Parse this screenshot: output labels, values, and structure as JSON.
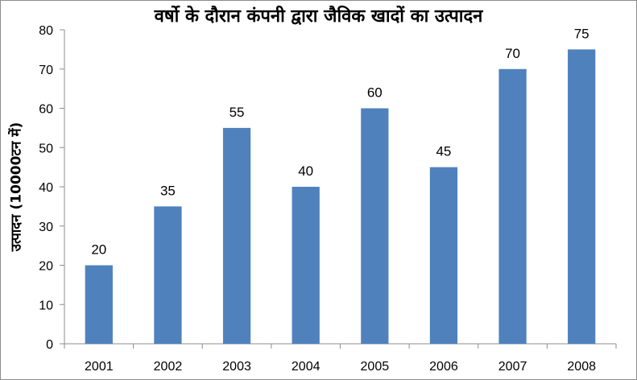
{
  "chart_data": {
    "type": "bar",
    "title": "वर्षो के दौरान कंपनी द्वारा जैविक खादों का उत्पादन",
    "xlabel": "",
    "ylabel": "उत्पादन (10000टन में)",
    "categories": [
      "2001",
      "2002",
      "2003",
      "2004",
      "2005",
      "2006",
      "2007",
      "2008"
    ],
    "values": [
      20,
      35,
      55,
      40,
      60,
      45,
      70,
      75
    ],
    "ylim": [
      0,
      80
    ],
    "yticks": [
      0,
      10,
      20,
      30,
      40,
      50,
      60,
      70,
      80
    ],
    "bar_color": "#4f81bd",
    "grid": false,
    "legend": false,
    "data_labels": true
  }
}
